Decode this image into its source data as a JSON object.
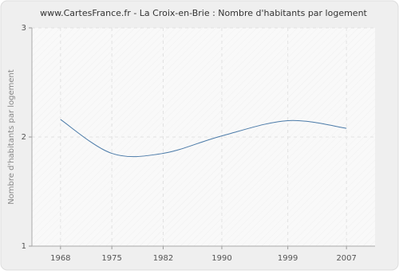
{
  "chart_data": {
    "type": "line",
    "title": "www.CartesFrance.fr - La Croix-en-Brie : Nombre d'habitants par logement",
    "y_label": "Nombre d'habitants par logement",
    "x": [
      1968,
      1975,
      1982,
      1990,
      1999,
      2007
    ],
    "series": [
      {
        "color": "#4a7aa8",
        "values": [
          2.16,
          1.85,
          1.85,
          2.01,
          2.15,
          2.08
        ]
      }
    ],
    "xlim": [
      1964.1,
      2010.9
    ],
    "xticks": [
      1968,
      1975,
      1982,
      1990,
      1999,
      2007
    ],
    "ylim": [
      1,
      3
    ],
    "yticks": [
      1,
      2,
      3
    ],
    "grid": true,
    "smooth": true
  }
}
